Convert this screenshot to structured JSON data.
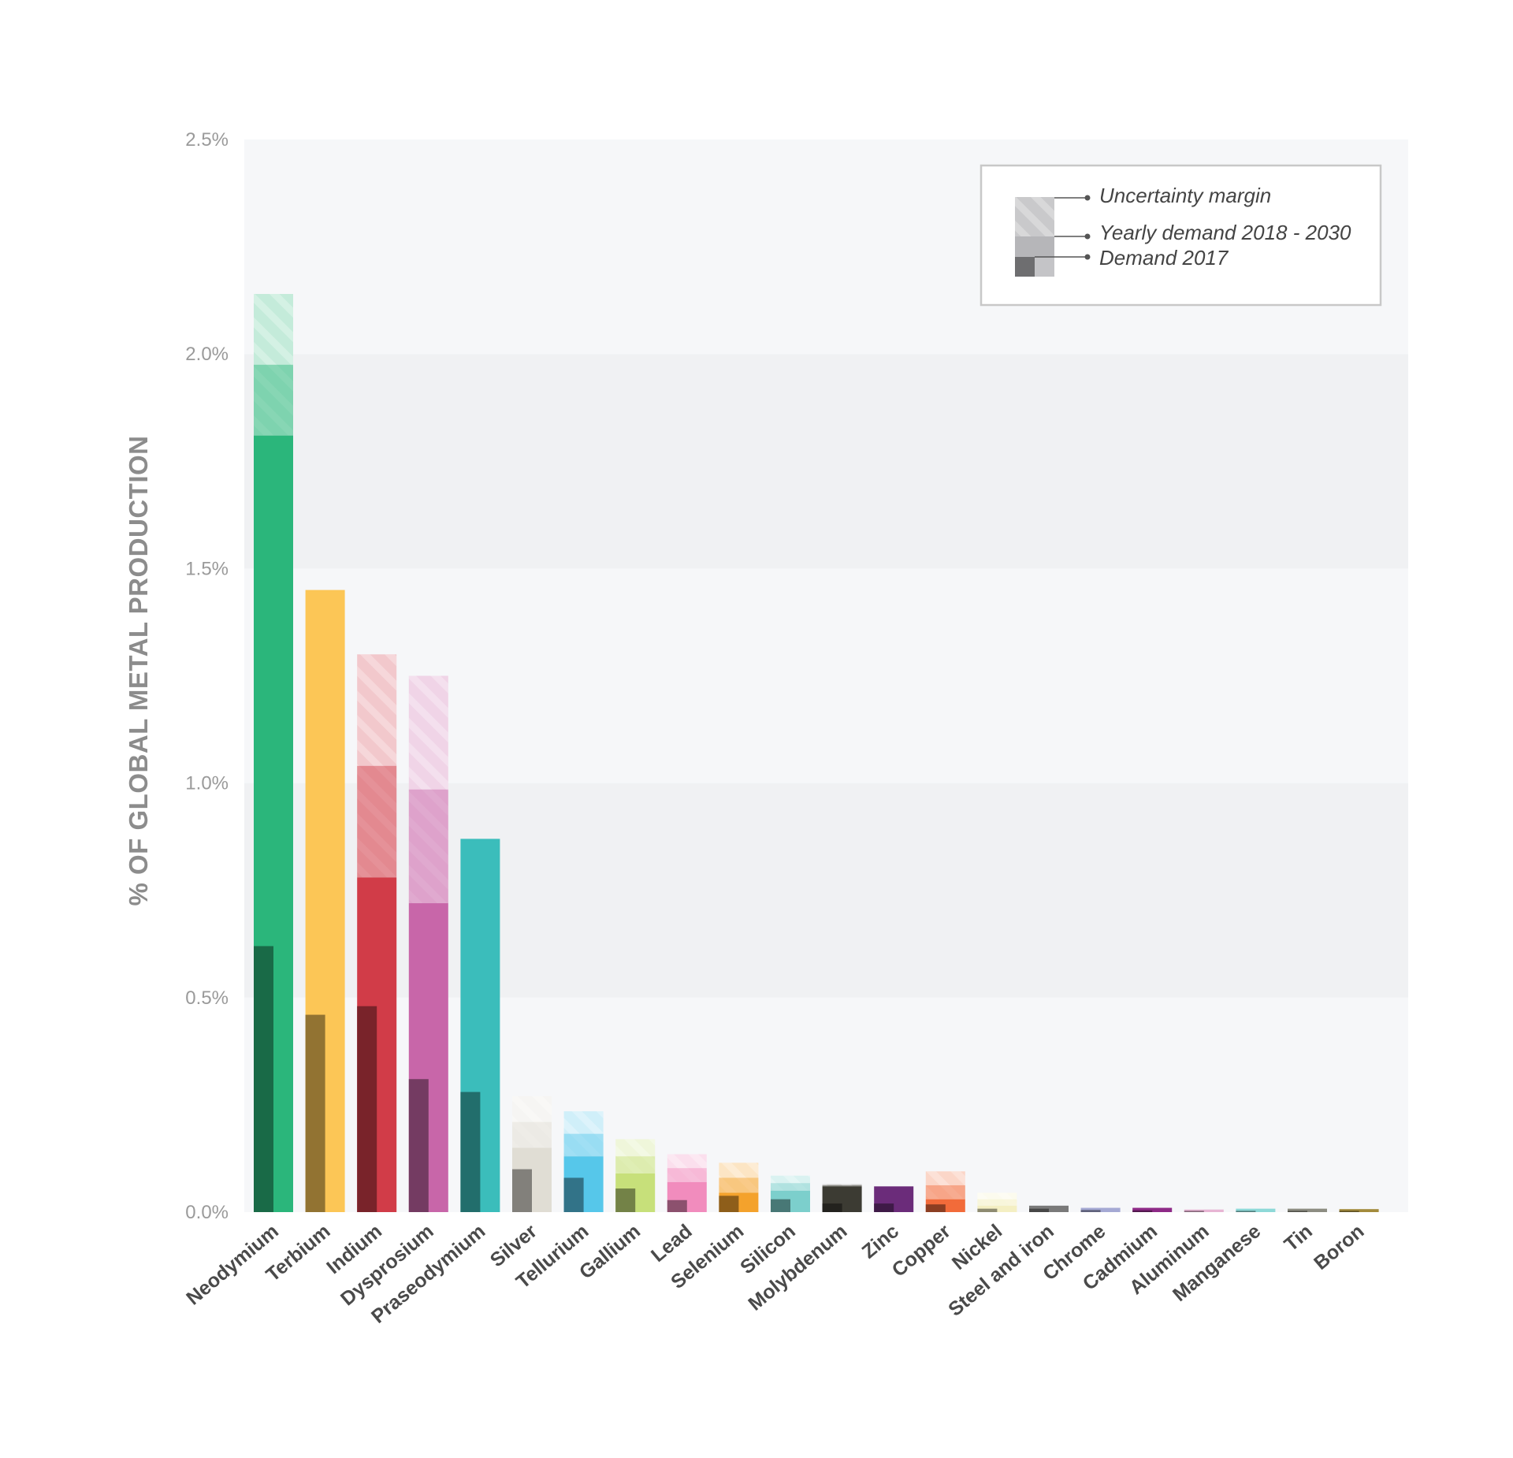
{
  "chart_data": {
    "type": "bar",
    "title": "",
    "xlabel": "",
    "ylabel": "% OF GLOBAL METAL PRODUCTION",
    "ylim": [
      0,
      2.5
    ],
    "yticks": [
      "0.0%",
      "0.5%",
      "1.0%",
      "1.5%",
      "2.0%",
      "2.5%"
    ],
    "ytick_values": [
      0,
      0.5,
      1.0,
      1.5,
      2.0,
      2.5
    ],
    "legend": {
      "placement": "top-right",
      "entries": [
        "Uncertainty margin",
        "Yearly demand 2018 - 2030",
        "Demand 2017"
      ]
    },
    "categories": [
      "Neodymium",
      "Terbium",
      "Indium",
      "Dysprosium",
      "Praseodymium",
      "Silver",
      "Tellurium",
      "Gallium",
      "Lead",
      "Selenium",
      "Silicon",
      "Molybdenum",
      "Zinc",
      "Copper",
      "Nickel",
      "Steel and iron",
      "Chrome",
      "Cadmium",
      "Aluminum",
      "Manganese",
      "Tin",
      "Boron"
    ],
    "colors": [
      "#2bb67b",
      "#fcc656",
      "#d13c48",
      "#c866a9",
      "#3bbdbb",
      "#e0ddd4",
      "#56c7ea",
      "#c7e07a",
      "#f18cbd",
      "#f4a22c",
      "#7ccfcc",
      "#3c3b33",
      "#6b2c7a",
      "#f26b3a",
      "#f4efc3",
      "#7a7a7a",
      "#a5a9d4",
      "#8e2a87",
      "#e7b5d4",
      "#8ed9d8",
      "#8d8d82",
      "#a38b3c"
    ],
    "series": [
      {
        "name": "Demand 2017",
        "values": [
          0.62,
          0.46,
          0.48,
          0.31,
          0.28,
          0.1,
          0.08,
          0.055,
          0.028,
          0.038,
          0.03,
          0.02,
          0.02,
          0.018,
          0.008,
          0.008,
          0.005,
          0.004,
          0.003,
          0.003,
          0.003,
          0.003
        ]
      },
      {
        "name": "Yearly demand 2018 - 2030",
        "values": [
          1.81,
          1.45,
          0.78,
          0.72,
          0.87,
          0.15,
          0.13,
          0.09,
          0.07,
          0.045,
          0.05,
          0.06,
          0.06,
          0.03,
          0.015,
          0.015,
          0.01,
          0.01,
          0.006,
          0.008,
          0.008,
          0.007
        ]
      },
      {
        "name": "Uncertainty margin",
        "low": [
          1.81,
          1.45,
          0.78,
          0.72,
          0.87,
          0.15,
          0.13,
          0.09,
          0.07,
          0.045,
          0.05,
          0.06,
          0.06,
          0.03,
          0.015,
          0.015,
          0.01,
          0.01,
          0.006,
          0.008,
          0.008,
          0.007
        ],
        "high": [
          2.14,
          1.45,
          1.3,
          1.25,
          0.87,
          0.27,
          0.235,
          0.17,
          0.135,
          0.115,
          0.085,
          0.065,
          0.06,
          0.095,
          0.045,
          0.015,
          0.01,
          0.01,
          0.006,
          0.008,
          0.008,
          0.007
        ]
      }
    ],
    "grid": "alternating bands",
    "band_colors": [
      "#f6f7f9",
      "#f0f1f3"
    ]
  }
}
